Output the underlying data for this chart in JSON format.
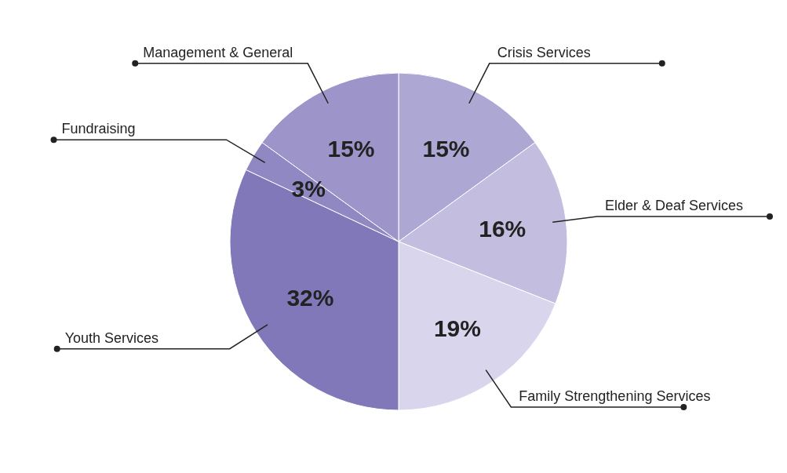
{
  "chart_data": {
    "type": "pie",
    "categories": [
      "Crisis Services",
      "Elder & Deaf Services",
      "Family Strengthening Services",
      "Youth Services",
      "Fundraising",
      "Management & General"
    ],
    "values": [
      15,
      16,
      19,
      32,
      3,
      15
    ],
    "colors": [
      "#ada7d3",
      "#c3bee0",
      "#d9d5ec",
      "#8078b8",
      "#8f88c2",
      "#9d95c9"
    ],
    "value_labels": [
      "15%",
      "16%",
      "19%",
      "32%",
      "3%",
      "15%"
    ],
    "legend": false
  }
}
